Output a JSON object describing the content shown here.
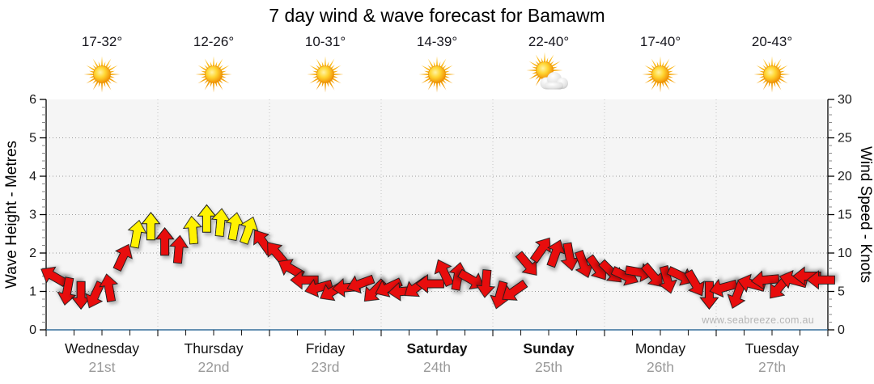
{
  "title": "7 day wind & wave forecast for Bamawm",
  "watermark": "www.seabreeze.com.au",
  "axes": {
    "left_label": "Wave Height - Metres",
    "right_label": "Wind Speed - Knots",
    "left_ticks": [
      0,
      1,
      2,
      3,
      4,
      5,
      6
    ],
    "right_ticks": [
      0,
      5,
      10,
      15,
      20,
      25,
      30
    ]
  },
  "days": [
    {
      "name": "Wednesday",
      "date": "21st",
      "temp": "17-32°",
      "icon": "sunny",
      "weekend": false
    },
    {
      "name": "Thursday",
      "date": "22nd",
      "temp": "12-26°",
      "icon": "sunny",
      "weekend": false
    },
    {
      "name": "Friday",
      "date": "23rd",
      "temp": "10-31°",
      "icon": "sunny",
      "weekend": false
    },
    {
      "name": "Saturday",
      "date": "24th",
      "temp": "14-39°",
      "icon": "sunny",
      "weekend": true
    },
    {
      "name": "Sunday",
      "date": "25th",
      "temp": "22-40°",
      "icon": "partly-cloudy",
      "weekend": true
    },
    {
      "name": "Monday",
      "date": "26th",
      "temp": "17-40°",
      "icon": "sunny",
      "weekend": false
    },
    {
      "name": "Tuesday",
      "date": "27th",
      "temp": "20-43°",
      "icon": "sunny",
      "weekend": false
    }
  ],
  "chart_data": {
    "type": "wind-arrow-series",
    "title": "7 day wind & wave forecast for Bamawm",
    "x_categories": [
      "Wednesday 21st",
      "Thursday 22nd",
      "Friday 23rd",
      "Saturday 24th",
      "Sunday 25th",
      "Monday 26th",
      "Tuesday 27th"
    ],
    "points_per_day": 8,
    "y_left_axis": {
      "label": "Wave Height - Metres",
      "range": [
        0,
        6
      ]
    },
    "y_right_axis": {
      "label": "Wind Speed - Knots",
      "range": [
        0,
        30
      ]
    },
    "wave_height_series": "none plotted",
    "direction_convention": "dir_deg = direction arrow points toward; 0 = up/N, 90 = right/E, clockwise",
    "series": [
      {
        "name": "Wind Speed - Knots",
        "days": [
          [
            [
              7,
              300
            ],
            [
              5,
              190
            ],
            [
              4.5,
              180
            ],
            [
              4.5,
              205
            ],
            [
              5.5,
              350
            ],
            [
              9.5,
              25
            ],
            [
              12.5,
              10
            ],
            [
              13.5,
              0
            ]
          ],
          [
            [
              11.5,
              0
            ],
            [
              10.5,
              5
            ],
            [
              13,
              355
            ],
            [
              14.5,
              0
            ],
            [
              14,
              5
            ],
            [
              13.5,
              10
            ],
            [
              13,
              20
            ],
            [
              11.5,
              325
            ]
          ],
          [
            [
              10,
              320
            ],
            [
              8,
              300
            ],
            [
              6.5,
              270
            ],
            [
              5.5,
              255
            ],
            [
              5,
              240
            ],
            [
              5.5,
              265
            ],
            [
              6,
              250
            ],
            [
              5,
              225
            ]
          ],
          [
            [
              5.5,
              245
            ],
            [
              5,
              265
            ],
            [
              5.5,
              235
            ],
            [
              6,
              270
            ],
            [
              7.5,
              335
            ],
            [
              7,
              10
            ],
            [
              6.5,
              120
            ],
            [
              6,
              185
            ]
          ],
          [
            [
              4.5,
              195
            ],
            [
              5,
              235
            ],
            [
              8.5,
              140
            ],
            [
              10.5,
              35
            ],
            [
              10,
              20
            ],
            [
              9.5,
              170
            ],
            [
              8.5,
              160
            ],
            [
              8,
              145
            ]
          ],
          [
            [
              7.5,
              135
            ],
            [
              7,
              115
            ],
            [
              7.5,
              100
            ],
            [
              7,
              140
            ],
            [
              6.5,
              165
            ],
            [
              7,
              115
            ],
            [
              6,
              150
            ],
            [
              4.5,
              180
            ]
          ],
          [
            [
              5.5,
              255
            ],
            [
              4.5,
              200
            ],
            [
              6,
              285
            ],
            [
              6.5,
              265
            ],
            [
              5.5,
              220
            ],
            [
              6.5,
              285
            ],
            [
              7,
              270
            ],
            [
              6.5,
              270
            ]
          ]
        ]
      }
    ],
    "arrow_colors": {
      "light_under_12kt": "#e81111",
      "fresh_12kt_plus": "#fff200"
    },
    "grid": "dotted gray horizontal lines every 5 knots (1 m), dotted vertical lines at day boundaries",
    "axis_colors": {
      "vertical_axes": "#000000",
      "bottom_axis": "#356f9b"
    }
  }
}
